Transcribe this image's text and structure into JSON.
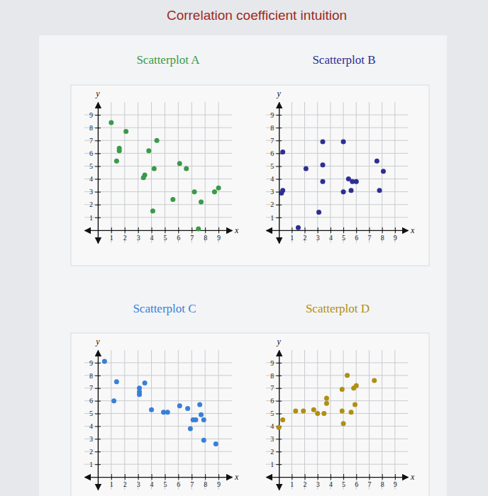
{
  "title": "Correlation coefficient intuition",
  "chart_data": [
    {
      "type": "scatter",
      "title": "Scatterplot A",
      "xlabel": "x",
      "ylabel": "y",
      "color": "#3a9a48",
      "x": [
        1,
        2.1,
        1.6,
        1.6,
        1.4,
        4.4,
        3.8,
        4.2,
        3.5,
        3.4,
        4.1,
        6.1,
        6.6,
        5.6,
        7.2,
        7.7,
        8.7,
        9.0,
        7.5
      ],
      "values": [
        8.4,
        7.7,
        6.4,
        6.2,
        5.4,
        7.0,
        6.2,
        4.8,
        4.3,
        4.1,
        1.5,
        5.2,
        4.8,
        2.4,
        3.0,
        2.2,
        3.0,
        3.3,
        0.1
      ],
      "xlim": [
        -1,
        10
      ],
      "ylim": [
        -1,
        10
      ],
      "xticks": [
        1,
        2,
        3,
        4,
        5,
        6,
        7,
        8,
        9
      ],
      "yticks": [
        1,
        2,
        3,
        4,
        5,
        6,
        7,
        8,
        9
      ],
      "grid": true
    },
    {
      "type": "scatter",
      "title": "Scatterplot B",
      "xlabel": "x",
      "ylabel": "y",
      "color": "#2e2e92",
      "x": [
        0.3,
        0.3,
        0.2,
        1.5,
        2.1,
        3.4,
        3.4,
        3.4,
        3.1,
        5.0,
        5.4,
        5.7,
        6.0,
        5.0,
        5.6,
        7.6,
        8.1,
        7.8
      ],
      "values": [
        6.1,
        3.1,
        2.9,
        0.2,
        4.8,
        6.9,
        5.1,
        3.8,
        1.4,
        6.9,
        4.0,
        3.8,
        3.8,
        3.0,
        3.1,
        5.4,
        4.6,
        3.1
      ],
      "xlim": [
        -1,
        10
      ],
      "ylim": [
        -1,
        10
      ],
      "xticks": [
        1,
        2,
        3,
        4,
        5,
        6,
        7,
        8,
        9
      ],
      "yticks": [
        1,
        2,
        3,
        4,
        5,
        6,
        7,
        8,
        9
      ],
      "grid": true
    },
    {
      "type": "scatter",
      "title": "Scatterplot C",
      "xlabel": "x",
      "ylabel": "y",
      "color": "#3a7fd6",
      "x": [
        0.5,
        1.4,
        1.2,
        3.1,
        3.5,
        3.1,
        3.1,
        4.0,
        4.9,
        5.2,
        6.1,
        6.7,
        7.6,
        7.7,
        7.1,
        7.3,
        6.9,
        7.9,
        7.9,
        8.8
      ],
      "values": [
        9.1,
        7.5,
        6.0,
        7.0,
        7.4,
        6.7,
        6.5,
        5.3,
        5.1,
        5.1,
        5.6,
        5.4,
        5.7,
        4.9,
        4.5,
        4.5,
        3.8,
        4.5,
        2.9,
        2.6
      ],
      "xlim": [
        -1,
        10
      ],
      "ylim": [
        -1,
        10
      ],
      "xticks": [
        1,
        2,
        3,
        4,
        5,
        6,
        7,
        8,
        9
      ],
      "yticks": [
        1,
        2,
        3,
        4,
        5,
        6,
        7,
        8,
        9
      ],
      "grid": true
    },
    {
      "type": "scatter",
      "title": "Scatterplot D",
      "xlabel": "x",
      "ylabel": "y",
      "color": "#b08f12",
      "x": [
        0,
        0.3,
        1.3,
        1.9,
        2.7,
        3.0,
        3.5,
        3.7,
        3.7,
        4.9,
        5.3,
        5.8,
        6.0,
        4.9,
        5.0,
        5.6,
        5.9,
        7.4
      ],
      "values": [
        3.9,
        4.5,
        5.2,
        5.2,
        5.3,
        5.0,
        5.0,
        5.8,
        6.2,
        6.9,
        8.0,
        7.0,
        7.2,
        5.2,
        4.2,
        5.1,
        5.7,
        7.6
      ],
      "xlim": [
        -1,
        10
      ],
      "ylim": [
        -1,
        10
      ],
      "xticks": [
        1,
        2,
        3,
        4,
        5,
        6,
        7,
        8,
        9
      ],
      "yticks": [
        1,
        2,
        3,
        4,
        5,
        6,
        7,
        8,
        9
      ],
      "grid": true
    }
  ]
}
